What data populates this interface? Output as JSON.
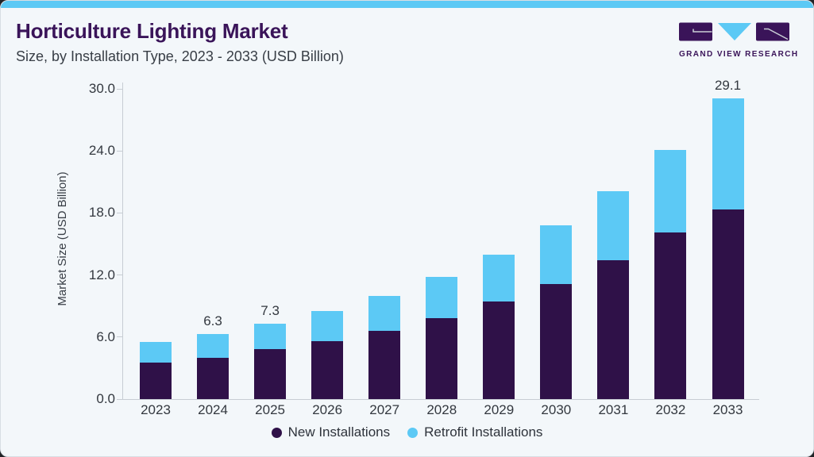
{
  "header": {
    "title": "Horticulture Lighting Market",
    "subtitle": "Size, by Installation Type, 2023 - 2033 (USD Billion)"
  },
  "logo": {
    "brand": "Grand View Research",
    "caption": "GRAND VIEW RESEARCH"
  },
  "colors": {
    "accent_blue": "#5CC9F5",
    "new_installations_purple": "#2F1148",
    "retrofit_installations_blue": "#5CC9F5",
    "title_purple": "#3A1459",
    "text_dark": "#33383F",
    "axis_gray": "#C7CDD3",
    "card_bg": "#F3F7FA"
  },
  "chart_data": {
    "type": "bar",
    "stacked": true,
    "title": "Horticulture Lighting Market Size, by Installation Type, 2023 - 2033 (USD Billion)",
    "categories": [
      "2023",
      "2024",
      "2025",
      "2026",
      "2027",
      "2028",
      "2029",
      "2030",
      "2031",
      "2032",
      "2033"
    ],
    "series": [
      {
        "name": "New Installations",
        "color": "#2F1148",
        "values": [
          3.5,
          4.0,
          4.8,
          5.6,
          6.6,
          7.8,
          9.4,
          11.1,
          13.4,
          16.1,
          18.3
        ]
      },
      {
        "name": "Retrofit Installations",
        "color": "#5CC9F5",
        "values": [
          2.0,
          2.3,
          2.5,
          2.9,
          3.4,
          4.0,
          4.6,
          5.7,
          6.7,
          8.0,
          10.8
        ]
      }
    ],
    "totals": [
      5.5,
      6.3,
      7.3,
      8.5,
      10.0,
      11.8,
      14.0,
      16.8,
      20.1,
      24.1,
      29.1
    ],
    "bar_labels": [
      "",
      "6.3",
      "7.3",
      "",
      "",
      "",
      "",
      "",
      "",
      "",
      "29.1"
    ],
    "xlabel": "",
    "ylabel": "Market Size (USD Billion)",
    "y_ticks": [
      "0.0",
      "6.0",
      "12.0",
      "18.0",
      "24.0",
      "30.0"
    ],
    "ylim": [
      0,
      30
    ],
    "grid": false,
    "legend_position": "bottom"
  }
}
